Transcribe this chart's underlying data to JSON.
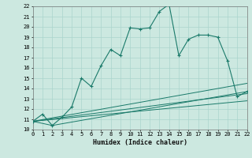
{
  "title": "",
  "xlabel": "Humidex (Indice chaleur)",
  "bg_color": "#cce8e0",
  "line_color": "#1a7a6a",
  "grid_color": "#aad4cc",
  "xlim": [
    0,
    22
  ],
  "ylim": [
    10,
    22
  ],
  "xticks": [
    0,
    1,
    2,
    3,
    4,
    5,
    6,
    7,
    8,
    9,
    10,
    11,
    12,
    13,
    14,
    15,
    16,
    17,
    18,
    19,
    20,
    21,
    22
  ],
  "yticks": [
    10,
    11,
    12,
    13,
    14,
    15,
    16,
    17,
    18,
    19,
    20,
    21,
    22
  ],
  "series": [
    [
      0,
      10.8
    ],
    [
      1,
      11.5
    ],
    [
      2,
      10.4
    ],
    [
      3,
      11.2
    ],
    [
      4,
      12.2
    ],
    [
      5,
      15.0
    ],
    [
      6,
      14.2
    ],
    [
      7,
      16.2
    ],
    [
      8,
      17.8
    ],
    [
      9,
      17.2
    ],
    [
      10,
      19.9
    ],
    [
      11,
      19.8
    ],
    [
      12,
      19.9
    ],
    [
      13,
      21.5
    ],
    [
      14,
      22.2
    ],
    [
      15,
      17.2
    ],
    [
      16,
      18.8
    ],
    [
      17,
      19.2
    ],
    [
      18,
      19.2
    ],
    [
      19,
      19.0
    ],
    [
      20,
      16.7
    ],
    [
      21,
      13.2
    ],
    [
      22,
      13.7
    ]
  ],
  "line2": [
    [
      0,
      10.8
    ],
    [
      2,
      10.4
    ],
    [
      22,
      13.7
    ]
  ],
  "line3": [
    [
      0,
      10.8
    ],
    [
      22,
      14.5
    ]
  ],
  "line4": [
    [
      0,
      10.8
    ],
    [
      22,
      13.5
    ]
  ],
  "line5": [
    [
      0,
      10.8
    ],
    [
      22,
      12.8
    ]
  ]
}
